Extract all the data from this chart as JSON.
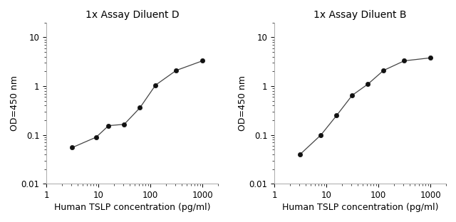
{
  "left_title": "1x Assay Diluent D",
  "right_title": "1x Assay Diluent B",
  "xlabel": "Human TSLP concentration (pg/ml)",
  "ylabel": "OD=450 nm",
  "left_x": [
    3.1,
    9.0,
    15.6,
    31.2,
    62.5,
    125.0,
    312.5,
    1000.0
  ],
  "left_y": [
    0.055,
    0.09,
    0.155,
    0.165,
    0.36,
    1.05,
    2.1,
    3.3
  ],
  "right_x": [
    3.1,
    7.8,
    15.6,
    31.2,
    62.5,
    125.0,
    312.5,
    1000.0
  ],
  "right_y": [
    0.04,
    0.1,
    0.25,
    0.65,
    1.1,
    2.1,
    3.3,
    3.8
  ],
  "xlim": [
    1,
    2000
  ],
  "ylim": [
    0.01,
    20
  ],
  "line_color": "#444444",
  "marker_color": "#111111",
  "bg_color": "#ffffff",
  "title_fontsize": 10,
  "label_fontsize": 9,
  "tick_fontsize": 8.5,
  "marker_size": 4.5
}
